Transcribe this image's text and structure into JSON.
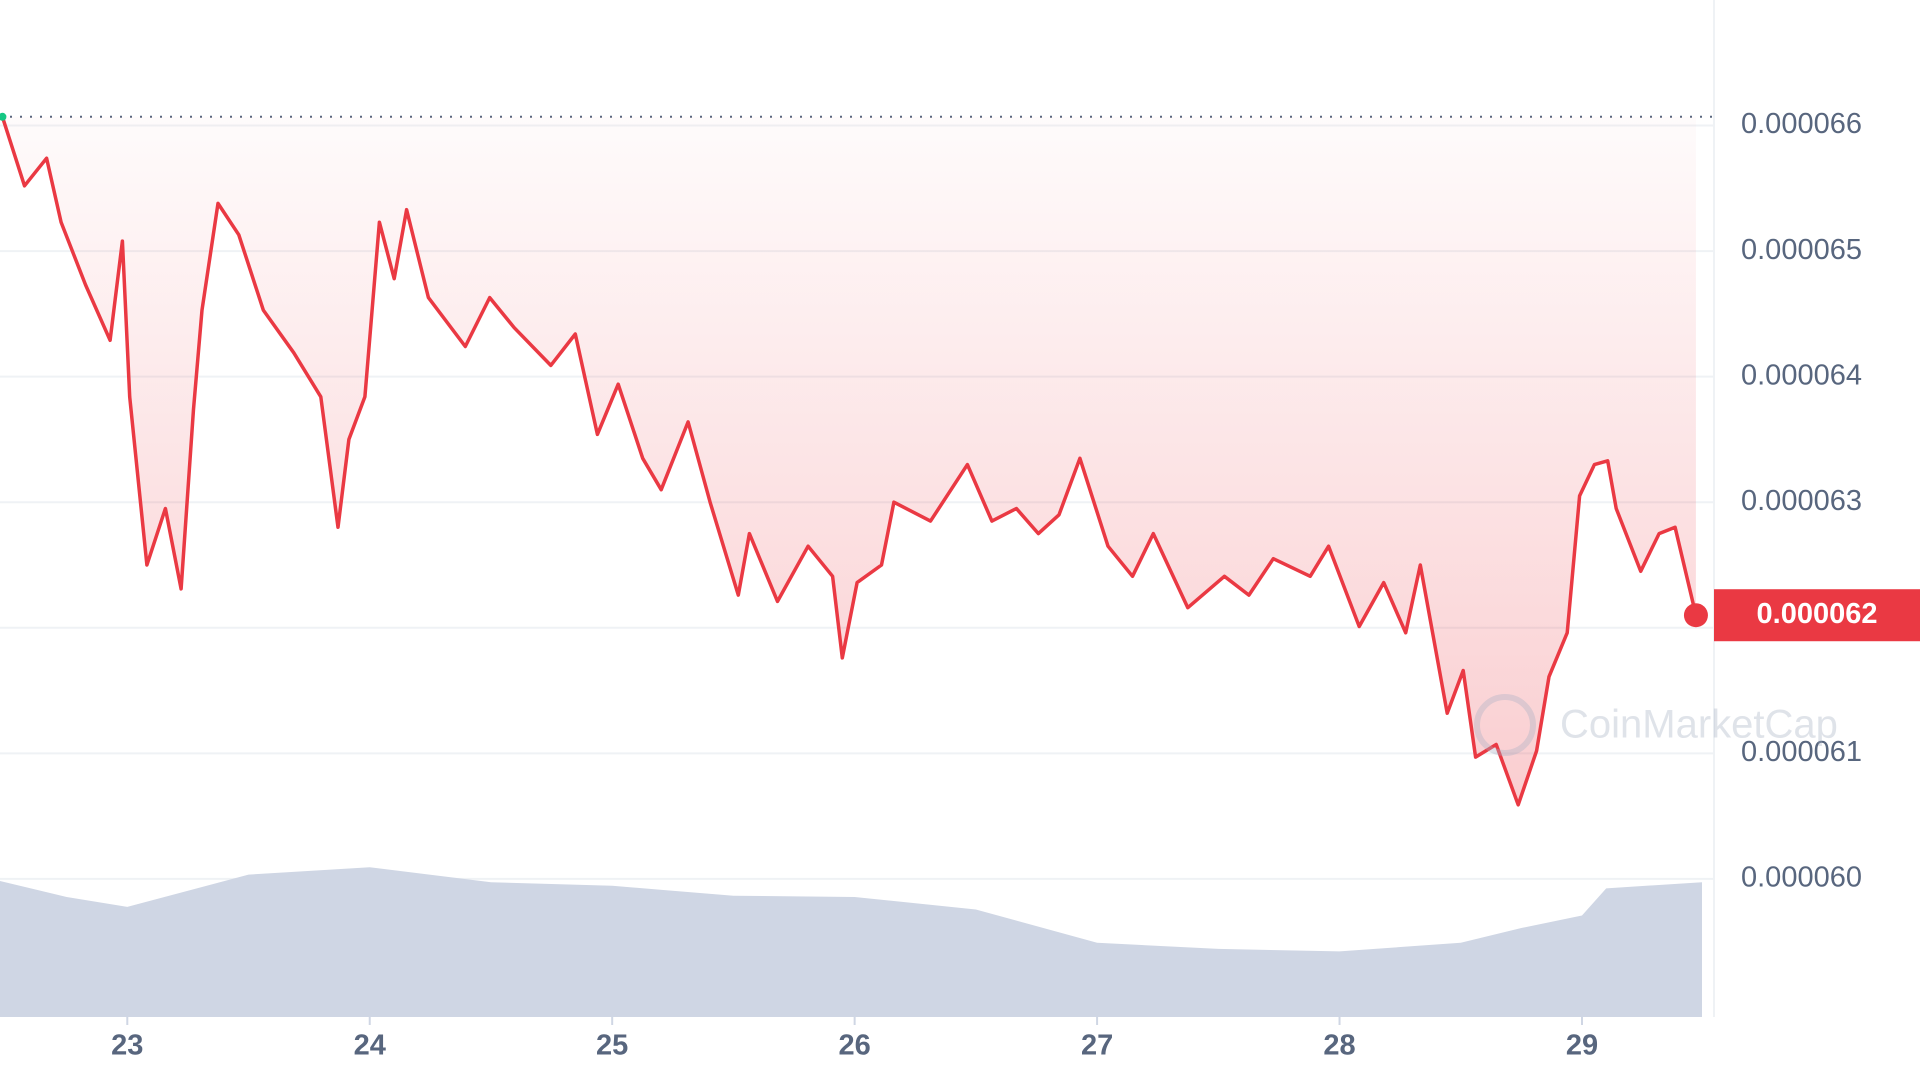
{
  "chart_data": {
    "type": "line",
    "xlim": [
      22.475,
      29.495
    ],
    "xticks": [
      {
        "value": 23,
        "label": "23"
      },
      {
        "value": 24,
        "label": "24"
      },
      {
        "value": 25,
        "label": "25"
      },
      {
        "value": 26,
        "label": "26"
      },
      {
        "value": 27,
        "label": "27"
      },
      {
        "value": 28,
        "label": "28"
      },
      {
        "value": 29,
        "label": "29"
      }
    ],
    "ylim": [
      5.89e-05,
      6.7e-05
    ],
    "yticks": [
      6.6e-05,
      6.5e-05,
      6.4e-05,
      6.3e-05,
      6.2e-05,
      6.1e-05,
      {
        "value": 6e-05,
        "label": "0.000060"
      }
    ],
    "y2lim": [
      0,
      400
    ],
    "grid": true,
    "last_price_label": "0.000062",
    "watermark": "CoinMarketCap",
    "series": [
      {
        "color": "#ea3943",
        "x": [
          22.485,
          22.576,
          22.667,
          22.727,
          22.828,
          22.929,
          22.98,
          23.01,
          23.081,
          23.157,
          23.222,
          23.273,
          23.308,
          23.374,
          23.46,
          23.561,
          23.687,
          23.798,
          23.869,
          23.914,
          23.98,
          24.04,
          24.101,
          24.152,
          24.242,
          24.394,
          24.495,
          24.596,
          24.747,
          24.848,
          24.939,
          25.025,
          25.126,
          25.202,
          25.313,
          25.404,
          25.52,
          25.566,
          25.682,
          25.808,
          25.909,
          25.949,
          26.01,
          26.111,
          26.162,
          26.313,
          26.465,
          26.566,
          26.667,
          26.758,
          26.843,
          26.929,
          27.045,
          27.146,
          27.232,
          27.374,
          27.525,
          27.626,
          27.727,
          27.879,
          27.955,
          28.081,
          28.182,
          28.273,
          28.333,
          28.444,
          28.51,
          28.561,
          28.646,
          28.737,
          28.813,
          28.864,
          28.939,
          28.99,
          29.051,
          29.106,
          29.141,
          29.242,
          29.318,
          29.384,
          29.47
        ],
        "values": [
          6.607e-05,
          6.552e-05,
          6.574e-05,
          6.523e-05,
          6.473e-05,
          6.429e-05,
          6.508e-05,
          6.384e-05,
          6.25e-05,
          6.295e-05,
          6.231e-05,
          6.374e-05,
          6.453e-05,
          6.538e-05,
          6.513e-05,
          6.453e-05,
          6.419e-05,
          6.384e-05,
          6.28e-05,
          6.35e-05,
          6.384e-05,
          6.523e-05,
          6.478e-05,
          6.533e-05,
          6.463e-05,
          6.424e-05,
          6.463e-05,
          6.439e-05,
          6.409e-05,
          6.434e-05,
          6.354e-05,
          6.394e-05,
          6.335e-05,
          6.31e-05,
          6.364e-05,
          6.3e-05,
          6.226e-05,
          6.275e-05,
          6.221e-05,
          6.265e-05,
          6.241e-05,
          6.176e-05,
          6.236e-05,
          6.25e-05,
          6.3e-05,
          6.285e-05,
          6.33e-05,
          6.285e-05,
          6.295e-05,
          6.275e-05,
          6.29e-05,
          6.335e-05,
          6.265e-05,
          6.241e-05,
          6.275e-05,
          6.216e-05,
          6.241e-05,
          6.226e-05,
          6.255e-05,
          6.241e-05,
          6.265e-05,
          6.201e-05,
          6.236e-05,
          6.196e-05,
          6.25e-05,
          6.132e-05,
          6.166e-05,
          6.097e-05,
          6.107e-05,
          6.059e-05,
          6.102e-05,
          6.161e-05,
          6.196e-05,
          6.305e-05,
          6.33e-05,
          6.333e-05,
          6.295e-05,
          6.245e-05,
          6.275e-05,
          6.28e-05,
          6.21e-05
        ]
      },
      {
        "color": "#cfd6e4",
        "axis": "y2",
        "x": [
          22.475,
          22.75,
          23.0,
          23.5,
          24.0,
          24.5,
          25.0,
          25.5,
          26.0,
          26.5,
          27.0,
          27.5,
          28.0,
          28.5,
          28.75,
          29.0,
          29.1,
          29.495
        ],
        "values": [
          53.5,
          47.2,
          43.3,
          56,
          58.9,
          53,
          51.6,
          47.7,
          47.2,
          42.3,
          29.2,
          26.8,
          25.8,
          29.2,
          35,
          39.9,
          50.6,
          53
        ]
      }
    ]
  }
}
